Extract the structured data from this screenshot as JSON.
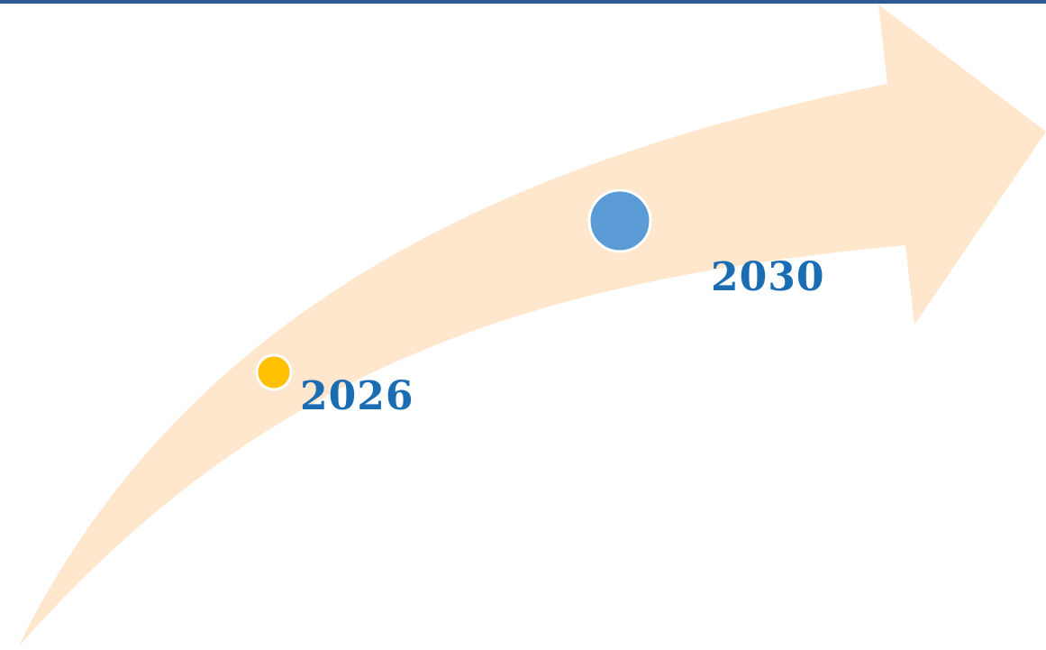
{
  "timeline": {
    "colors": {
      "top_rule": "#2e5a94",
      "arrow": "#fee7cd",
      "label": "#1a6cb3"
    },
    "milestones": [
      {
        "label": "2026",
        "marker_color": "#fec000"
      },
      {
        "label": "2030",
        "marker_color": "#5b9bd5"
      }
    ]
  }
}
